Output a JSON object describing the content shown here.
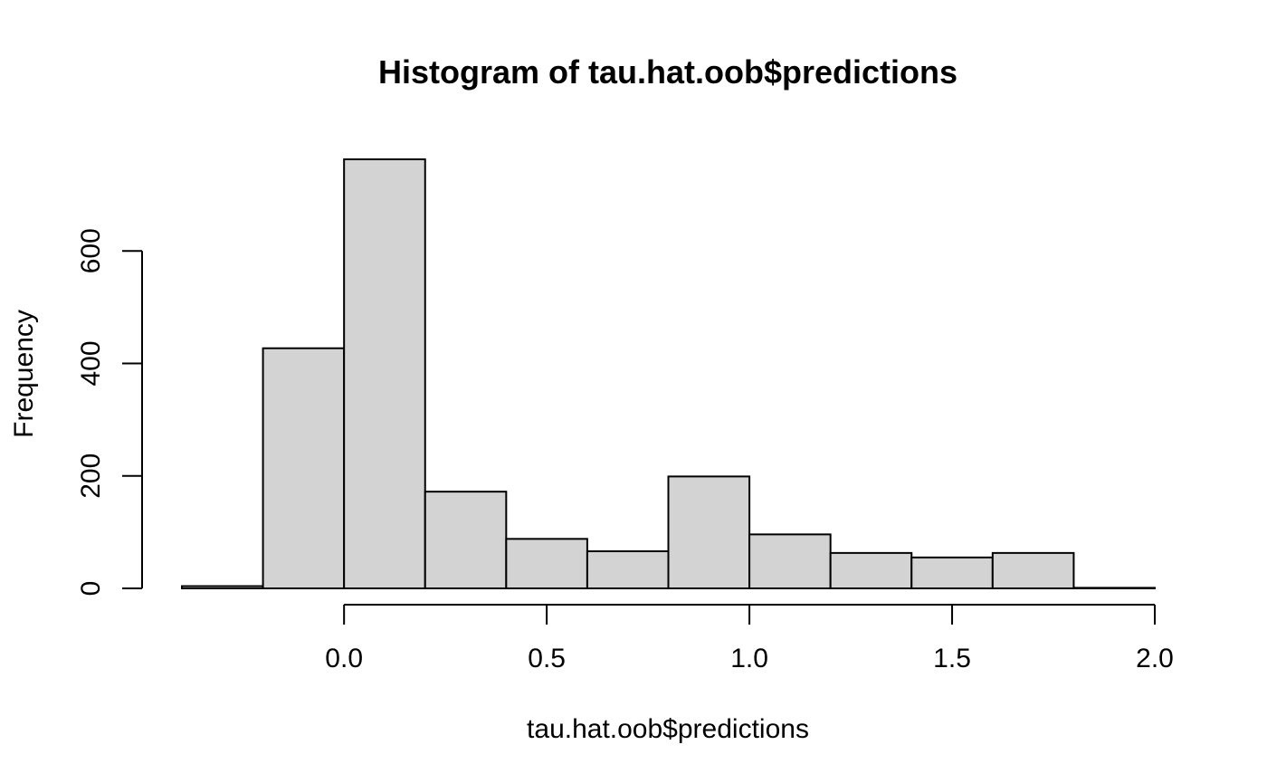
{
  "chart_data": {
    "type": "bar",
    "title": "Histogram of tau.hat.oob$predictions",
    "xlabel": "tau.hat.oob$predictions",
    "ylabel": "Frequency",
    "bins": [
      {
        "start": -0.4,
        "end": -0.2,
        "count": 4
      },
      {
        "start": -0.2,
        "end": 0.0,
        "count": 427
      },
      {
        "start": 0.0,
        "end": 0.2,
        "count": 763
      },
      {
        "start": 0.2,
        "end": 0.4,
        "count": 172
      },
      {
        "start": 0.4,
        "end": 0.6,
        "count": 88
      },
      {
        "start": 0.6,
        "end": 0.8,
        "count": 66
      },
      {
        "start": 0.8,
        "end": 1.0,
        "count": 199
      },
      {
        "start": 1.0,
        "end": 1.2,
        "count": 96
      },
      {
        "start": 1.2,
        "end": 1.4,
        "count": 63
      },
      {
        "start": 1.4,
        "end": 1.6,
        "count": 55
      },
      {
        "start": 1.6,
        "end": 1.8,
        "count": 63
      },
      {
        "start": 1.8,
        "end": 2.0,
        "count": 1
      }
    ],
    "xticks": [
      0.0,
      0.5,
      1.0,
      1.5,
      2.0
    ],
    "xtick_labels": [
      "0.0",
      "0.5",
      "1.0",
      "1.5",
      "2.0"
    ],
    "yticks": [
      0,
      200,
      400,
      600
    ],
    "ytick_labels": [
      "0",
      "200",
      "400",
      "600"
    ],
    "xlim": [
      -0.4,
      2.0
    ],
    "ylim": [
      0,
      763
    ],
    "grid": false,
    "colors": {
      "bar_fill": "#d3d3d3",
      "bar_stroke": "#000000"
    }
  }
}
